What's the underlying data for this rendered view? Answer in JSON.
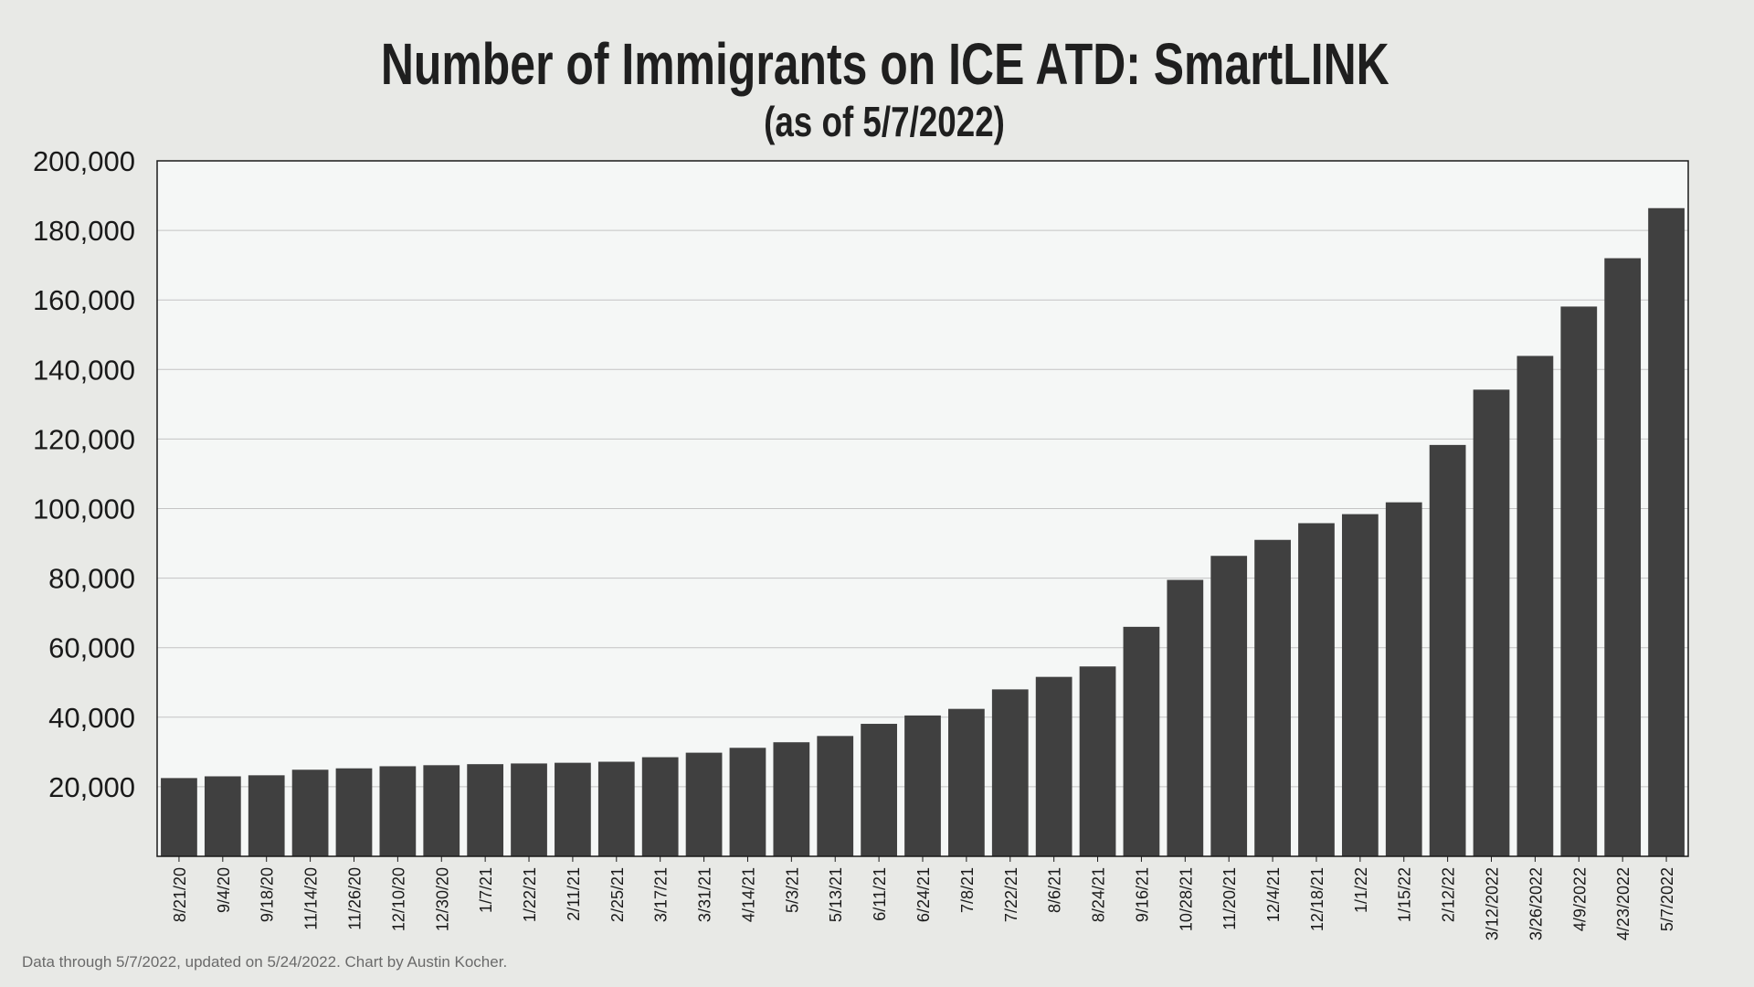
{
  "chart_data": {
    "type": "bar",
    "title": "Number of Immigrants on ICE ATD: SmartLINK",
    "subtitle": "(as of 5/7/2022)",
    "xlabel": "",
    "ylabel": "",
    "ylim": [
      0,
      200000
    ],
    "yticks": [
      20000,
      40000,
      60000,
      80000,
      100000,
      120000,
      140000,
      160000,
      180000,
      200000
    ],
    "ytick_labels": [
      "20,000",
      "40,000",
      "60,000",
      "80,000",
      "100,000",
      "120,000",
      "140,000",
      "160,000",
      "180,000",
      "200,000"
    ],
    "grid": true,
    "legend": "none",
    "categories": [
      "8/21/20",
      "9/4/20",
      "9/18/20",
      "11/14/20",
      "11/26/20",
      "12/10/20",
      "12/30/20",
      "1/7/21",
      "1/22/21",
      "2/11/21",
      "2/25/21",
      "3/17/21",
      "3/31/21",
      "4/14/21",
      "5/3/21",
      "5/13/21",
      "6/11/21",
      "6/24/21",
      "7/8/21",
      "7/22/21",
      "8/6/21",
      "8/24/21",
      "9/16/21",
      "10/28/21",
      "11/20/21",
      "12/4/21",
      "12/18/21",
      "1/1/22",
      "1/15/22",
      "2/12/22",
      "3/12/2022",
      "3/26/2022",
      "4/9/2022",
      "4/23/2022",
      "5/7/2022"
    ],
    "values": [
      22500,
      23000,
      23300,
      24900,
      25300,
      25900,
      26200,
      26500,
      26700,
      26900,
      27200,
      28500,
      29800,
      31200,
      32800,
      34600,
      38100,
      40500,
      42400,
      48000,
      51600,
      54600,
      66000,
      79500,
      86400,
      91000,
      95800,
      98400,
      101800,
      118300,
      134200,
      143900,
      158100,
      172000,
      186400
    ],
    "colors": {
      "bar": "#404040",
      "plot_background": "#f5f7f6",
      "page_background": "#e8e9e6",
      "grid": "#c4c4c4"
    }
  },
  "footnote": "Data through 5/7/2022, updated on 5/24/2022. Chart by Austin Kocher."
}
